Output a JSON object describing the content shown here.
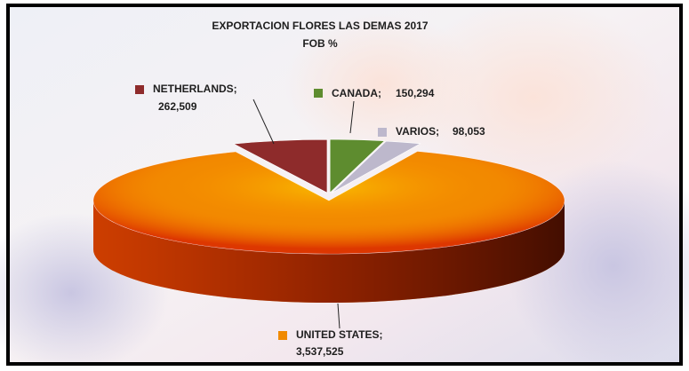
{
  "chart_data": {
    "type": "pie3d",
    "title": "EXPORTACION  FLORES LAS DEMAS 2017",
    "subtitle": "FOB  %",
    "categories": [
      "NETHERLANDS;",
      "CANADA;",
      "VARIOS;",
      "UNITED STATES;"
    ],
    "values": [
      262509,
      150294,
      98053,
      3537525
    ],
    "value_labels": [
      "262,509",
      "150,294",
      "98,053",
      "3,537,525"
    ],
    "colors": [
      "#8e2b2b",
      "#5e8c2f",
      "#bdb8cc",
      "#f08a00"
    ]
  }
}
